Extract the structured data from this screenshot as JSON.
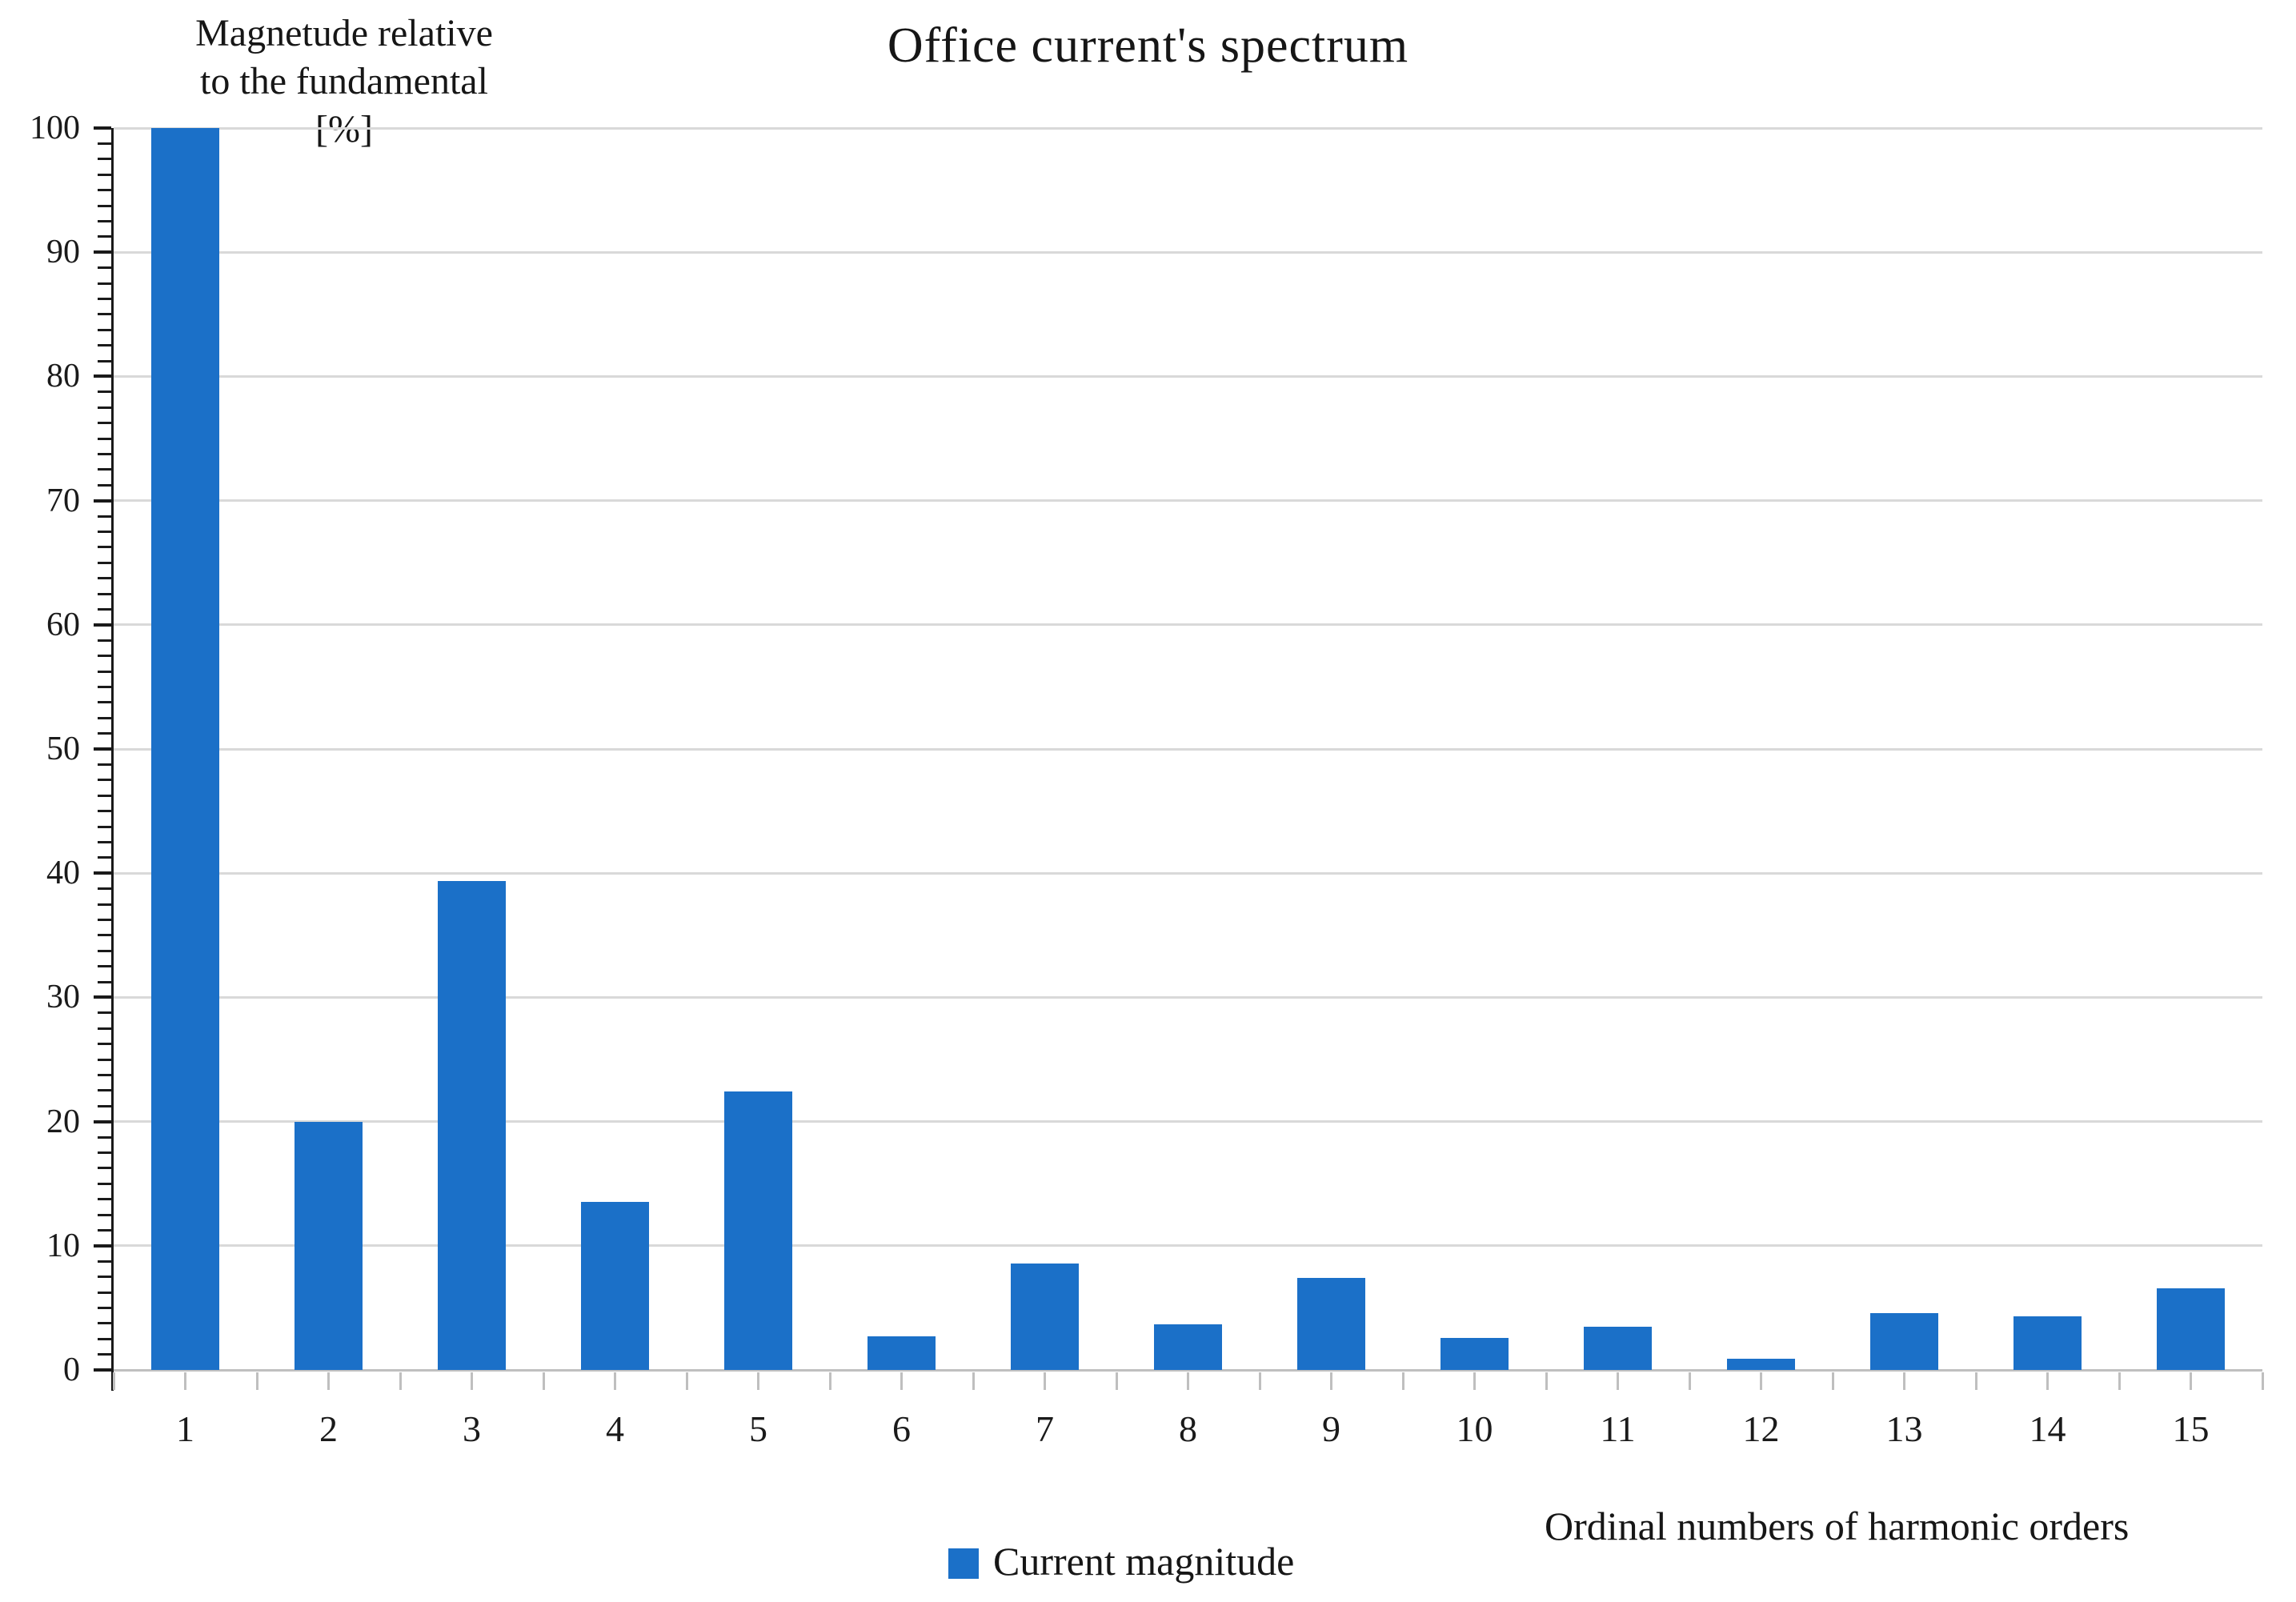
{
  "chart_data": {
    "type": "bar",
    "title": "Office current's spectrum",
    "ylabel_lines": [
      "Magnetude relative",
      "to the fundamental",
      "[%]"
    ],
    "xlabel": "Ordinal numbers of harmonic orders",
    "categories": [
      "1",
      "2",
      "3",
      "4",
      "5",
      "6",
      "7",
      "8",
      "9",
      "10",
      "11",
      "12",
      "13",
      "14",
      "15"
    ],
    "series": [
      {
        "name": "Current magnitude",
        "values": [
          100,
          20,
          39.4,
          13.5,
          22.4,
          2.7,
          8.6,
          3.7,
          7.4,
          2.6,
          3.5,
          0.9,
          4.6,
          4.3,
          6.6
        ]
      }
    ],
    "ylim": [
      0,
      100
    ],
    "y_major_step": 10,
    "y_minor_step": 1.25,
    "y_tick_labels": [
      "0",
      "10",
      "20",
      "30",
      "40",
      "50",
      "60",
      "70",
      "80",
      "90",
      "100"
    ],
    "grid": true,
    "legend_position": "bottom",
    "legend": [
      {
        "label": "Current magnitude",
        "color": "#1b70c8"
      }
    ]
  },
  "colors": {
    "bar": "#1b70c8",
    "gridline": "#d9d9d9",
    "x_axis": "#bfbfbf",
    "y_axis": "#1a1a1a",
    "text": "#161616"
  }
}
